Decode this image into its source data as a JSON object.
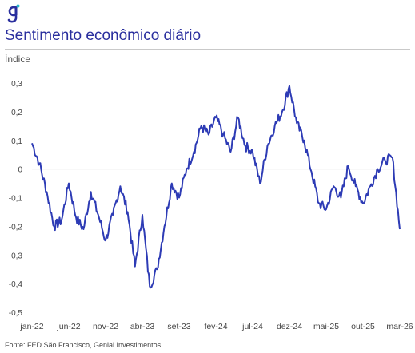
{
  "brand": {
    "logo_letter": "g",
    "accent_color": "#29b6c9"
  },
  "header": {
    "title": "Sentimento econômico diário",
    "unit_label": "Índice"
  },
  "footer": {
    "source": "Fonte: FED São Francisco, Genial Investimentos"
  },
  "colors": {
    "line": "#2d3bb5",
    "title": "#2a2f9e",
    "zero_line": "#c8c8c8"
  },
  "chart_data": {
    "type": "line",
    "title": "Sentimento econômico diário",
    "ylabel": "Índice",
    "ylim": [
      -0.5,
      0.3
    ],
    "y_ticks": [
      "-0,5",
      "-0,4",
      "-0,3",
      "-0,2",
      "-0,1",
      "0",
      "0,1",
      "0,2",
      "0,3"
    ],
    "x_ticks": [
      "jan-22",
      "jun-22",
      "nov-22",
      "abr-23",
      "set-23",
      "fev-24",
      "jul-24",
      "dez-24",
      "mai-25",
      "out-25",
      "mar-26"
    ],
    "grid": false,
    "zero_line": true,
    "points": [
      [
        "jan-22",
        0.09
      ],
      [
        "fev-22",
        0.02
      ],
      [
        "mar-22",
        -0.08
      ],
      [
        "abr-22",
        -0.2
      ],
      [
        "mai-22",
        -0.18
      ],
      [
        "jun-22",
        -0.05
      ],
      [
        "jul-22",
        -0.17
      ],
      [
        "ago-22",
        -0.21
      ],
      [
        "set-22",
        -0.08
      ],
      [
        "out-22",
        -0.16
      ],
      [
        "nov-22",
        -0.25
      ],
      [
        "dez-22",
        -0.16
      ],
      [
        "jan-23",
        -0.06
      ],
      [
        "fev-23",
        -0.15
      ],
      [
        "mar-23",
        -0.34
      ],
      [
        "abr-23",
        -0.16
      ],
      [
        "mai-23",
        -0.41
      ],
      [
        "jun-23",
        -0.35
      ],
      [
        "jul-23",
        -0.2
      ],
      [
        "ago-23",
        -0.05
      ],
      [
        "set-23",
        -0.1
      ],
      [
        "out-23",
        0.0
      ],
      [
        "nov-23",
        0.06
      ],
      [
        "dez-23",
        0.15
      ],
      [
        "jan-24",
        0.12
      ],
      [
        "fev-24",
        0.18
      ],
      [
        "mar-24",
        0.12
      ],
      [
        "abr-24",
        0.06
      ],
      [
        "mai-24",
        0.18
      ],
      [
        "jun-24",
        0.08
      ],
      [
        "jul-24",
        0.06
      ],
      [
        "ago-24",
        -0.05
      ],
      [
        "set-24",
        0.08
      ],
      [
        "out-24",
        0.15
      ],
      [
        "nov-24",
        0.2
      ],
      [
        "dez-24",
        0.29
      ],
      [
        "jan-25",
        0.16
      ],
      [
        "fev-25",
        0.1
      ],
      [
        "mar-25",
        -0.01
      ],
      [
        "abr-25",
        -0.12
      ],
      [
        "mai-25",
        -0.14
      ],
      [
        "jun-25",
        -0.06
      ],
      [
        "jul-25",
        -0.1
      ],
      [
        "ago-25",
        0.01
      ],
      [
        "set-25",
        -0.06
      ],
      [
        "out-25",
        -0.12
      ],
      [
        "nov-25",
        -0.06
      ],
      [
        "dez-25",
        0.0
      ],
      [
        "jan-26",
        0.03
      ],
      [
        "fev-26",
        0.04
      ],
      [
        "mar-26",
        -0.21
      ]
    ]
  }
}
